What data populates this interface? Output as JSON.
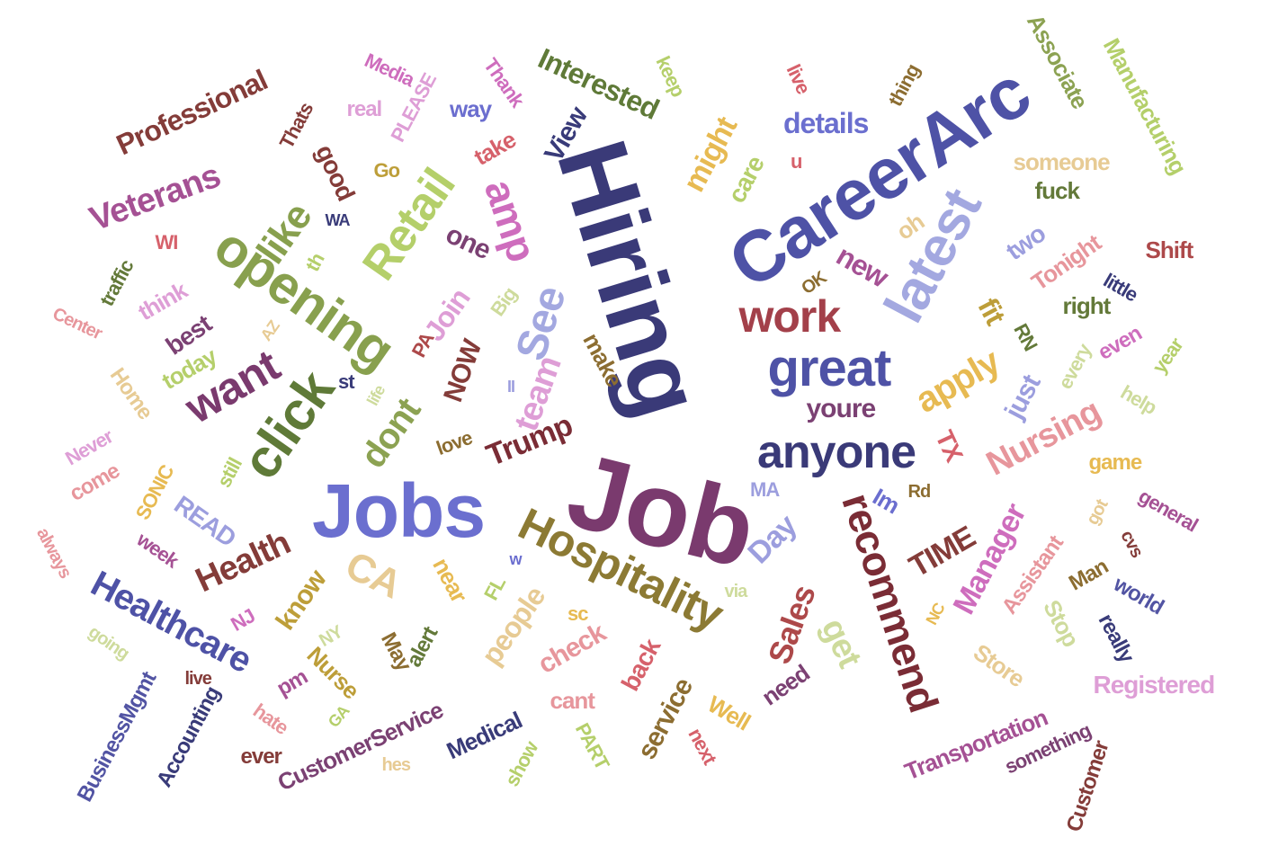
{
  "words": [
    {
      "text": "Hiring",
      "color": "#3a3a78"
    },
    {
      "text": "Job",
      "color": "#7a3a6e"
    },
    {
      "text": "CareerArc",
      "color": "#4e52a6"
    },
    {
      "text": "Jobs",
      "color": "#6b6fcf"
    },
    {
      "text": "latest",
      "color": "#a3a8e0"
    },
    {
      "text": "opening",
      "color": "#88a04e"
    },
    {
      "text": "click",
      "color": "#5f7a38"
    },
    {
      "text": "great",
      "color": "#4e52a6"
    },
    {
      "text": "anyone",
      "color": "#3a3a78"
    },
    {
      "text": "work",
      "color": "#a3404a"
    },
    {
      "text": "Retail",
      "color": "#b4cf6a"
    },
    {
      "text": "Hospitality",
      "color": "#8c7a34"
    },
    {
      "text": "recommend",
      "color": "#7a2c35"
    },
    {
      "text": "want",
      "color": "#7a3a6e"
    },
    {
      "text": "amp",
      "color": "#ce6dbd"
    },
    {
      "text": "See",
      "color": "#a3a8e0"
    },
    {
      "text": "like",
      "color": "#88a04e"
    },
    {
      "text": "apply",
      "color": "#e7ba52"
    },
    {
      "text": "Nursing",
      "color": "#e7969c"
    },
    {
      "text": "Healthcare",
      "color": "#4e52a6"
    },
    {
      "text": "Health",
      "color": "#843c39"
    },
    {
      "text": "Veterans",
      "color": "#a55194"
    },
    {
      "text": "Professional",
      "color": "#843c39"
    },
    {
      "text": "Interested",
      "color": "#5f7a38"
    },
    {
      "text": "details",
      "color": "#6b6fcf"
    },
    {
      "text": "Associate",
      "color": "#8ca252"
    },
    {
      "text": "Manufacturing",
      "color": "#b4cf6a"
    },
    {
      "text": "team",
      "color": "#de9ed6"
    },
    {
      "text": "Trump",
      "color": "#7a2c35"
    },
    {
      "text": "dont",
      "color": "#8ca252"
    },
    {
      "text": "CA",
      "color": "#e7cb94"
    },
    {
      "text": "Manager",
      "color": "#ce6dbd"
    },
    {
      "text": "Sales",
      "color": "#ad494a"
    },
    {
      "text": "TIME",
      "color": "#843c39"
    },
    {
      "text": "check",
      "color": "#e7969c"
    },
    {
      "text": "people",
      "color": "#e7cb94"
    },
    {
      "text": "get",
      "color": "#cedb9c"
    },
    {
      "text": "Day",
      "color": "#9c9ede"
    },
    {
      "text": "might",
      "color": "#e7ba52"
    },
    {
      "text": "new",
      "color": "#a55194"
    },
    {
      "text": "fit",
      "color": "#bd9e39"
    },
    {
      "text": "two",
      "color": "#9c9ede"
    },
    {
      "text": "youre",
      "color": "#7b4173"
    },
    {
      "text": "just",
      "color": "#9c9ede"
    },
    {
      "text": "TX",
      "color": "#d6616b"
    },
    {
      "text": "one",
      "color": "#7b4173"
    },
    {
      "text": "Join",
      "color": "#de9ed6"
    },
    {
      "text": "NOW",
      "color": "#843c39"
    },
    {
      "text": "good",
      "color": "#843c39"
    },
    {
      "text": "View",
      "color": "#393b79"
    },
    {
      "text": "Thank",
      "color": "#ce6dbd"
    },
    {
      "text": "PLEASE",
      "color": "#de9ed6"
    },
    {
      "text": "Media",
      "color": "#ce6dbd"
    },
    {
      "text": "real",
      "color": "#de9ed6"
    },
    {
      "text": "way",
      "color": "#6b6ecf"
    },
    {
      "text": "take",
      "color": "#d6616b"
    },
    {
      "text": "keep",
      "color": "#b5cf6b"
    },
    {
      "text": "live",
      "color": "#d6616b"
    },
    {
      "text": "thing",
      "color": "#8c6d31"
    },
    {
      "text": "care",
      "color": "#b5cf6b"
    },
    {
      "text": "u",
      "color": "#d6616b"
    },
    {
      "text": "someone",
      "color": "#e7cb94"
    },
    {
      "text": "fuck",
      "color": "#637939"
    },
    {
      "text": "oh",
      "color": "#e7cb94"
    },
    {
      "text": "Tonight",
      "color": "#e7969c"
    },
    {
      "text": "Shift",
      "color": "#ad494a"
    },
    {
      "text": "little",
      "color": "#393b79"
    },
    {
      "text": "right",
      "color": "#637939"
    },
    {
      "text": "OK",
      "color": "#8c6d31"
    },
    {
      "text": "Go",
      "color": "#bd9e39"
    },
    {
      "text": "Thats",
      "color": "#843c39"
    },
    {
      "text": "WA",
      "color": "#393b79"
    },
    {
      "text": "th",
      "color": "#b5cf6b"
    },
    {
      "text": "WI",
      "color": "#d6616b"
    },
    {
      "text": "traffic",
      "color": "#637939"
    },
    {
      "text": "think",
      "color": "#de9ed6"
    },
    {
      "text": "best",
      "color": "#7b4173"
    },
    {
      "text": "Center",
      "color": "#e7969c"
    },
    {
      "text": "today",
      "color": "#b5cf6b"
    },
    {
      "text": "AZ",
      "color": "#e7cb94"
    },
    {
      "text": "Big",
      "color": "#cedb9c"
    },
    {
      "text": "PA",
      "color": "#ad494a"
    },
    {
      "text": "make",
      "color": "#8c6d31"
    },
    {
      "text": "II",
      "color": "#9c9ede"
    },
    {
      "text": "st",
      "color": "#393b79"
    },
    {
      "text": "life",
      "color": "#cedb9c"
    },
    {
      "text": "Home",
      "color": "#e7cb94"
    },
    {
      "text": "Never",
      "color": "#de9ed6"
    },
    {
      "text": "come",
      "color": "#e7969c"
    },
    {
      "text": "SONIC",
      "color": "#e7ba52"
    },
    {
      "text": "READ",
      "color": "#9c9ede"
    },
    {
      "text": "still",
      "color": "#b5cf6b"
    },
    {
      "text": "love",
      "color": "#8c6d31"
    },
    {
      "text": "always",
      "color": "#e7969c"
    },
    {
      "text": "week",
      "color": "#a55194"
    },
    {
      "text": "NJ",
      "color": "#ce6dbd"
    },
    {
      "text": "know",
      "color": "#bd9e39"
    },
    {
      "text": "going",
      "color": "#cedb9c"
    },
    {
      "text": "BusinessMgmt",
      "color": "#5254a3"
    },
    {
      "text": "Accounting",
      "color": "#393b79"
    },
    {
      "text": "live",
      "color": "#843c39"
    },
    {
      "text": "pm",
      "color": "#a55194"
    },
    {
      "text": "hate",
      "color": "#e7969c"
    },
    {
      "text": "ever",
      "color": "#843c39"
    },
    {
      "text": "Nurse",
      "color": "#bd9e39"
    },
    {
      "text": "NY",
      "color": "#cedb9c"
    },
    {
      "text": "GA",
      "color": "#b5cf6b"
    },
    {
      "text": "May",
      "color": "#8c6d31"
    },
    {
      "text": "alert",
      "color": "#637939"
    },
    {
      "text": "CustomerService",
      "color": "#7b4173"
    },
    {
      "text": "hes",
      "color": "#e7cb94"
    },
    {
      "text": "Medical",
      "color": "#393b79"
    },
    {
      "text": "show",
      "color": "#b5cf6b"
    },
    {
      "text": "PART",
      "color": "#b5cf6b"
    },
    {
      "text": "near",
      "color": "#e7ba52"
    },
    {
      "text": "FL",
      "color": "#b5cf6b"
    },
    {
      "text": "w",
      "color": "#6b6ecf"
    },
    {
      "text": "sc",
      "color": "#e7ba52"
    },
    {
      "text": "cant",
      "color": "#e7969c"
    },
    {
      "text": "back",
      "color": "#d6616b"
    },
    {
      "text": "service",
      "color": "#8c6d31"
    },
    {
      "text": "via",
      "color": "#cedb9c"
    },
    {
      "text": "MA",
      "color": "#9c9ede"
    },
    {
      "text": "Well",
      "color": "#e7ba52"
    },
    {
      "text": "next",
      "color": "#d6616b"
    },
    {
      "text": "need",
      "color": "#7b4173"
    },
    {
      "text": "Im",
      "color": "#6b6ecf"
    },
    {
      "text": "Rd",
      "color": "#8c6d31"
    },
    {
      "text": "NC",
      "color": "#e7ba52"
    },
    {
      "text": "Assistant",
      "color": "#e7969c"
    },
    {
      "text": "Store",
      "color": "#e7cb94"
    },
    {
      "text": "Stop",
      "color": "#cedb9c"
    },
    {
      "text": "Man",
      "color": "#8c6d31"
    },
    {
      "text": "got",
      "color": "#e7cb94"
    },
    {
      "text": "cvs",
      "color": "#843c39"
    },
    {
      "text": "general",
      "color": "#a55194"
    },
    {
      "text": "world",
      "color": "#5254a3"
    },
    {
      "text": "really",
      "color": "#393b79"
    },
    {
      "text": "Registered",
      "color": "#de9ed6"
    },
    {
      "text": "Transportation",
      "color": "#a55194"
    },
    {
      "text": "something",
      "color": "#7b4173"
    },
    {
      "text": "Customer",
      "color": "#843c39"
    },
    {
      "text": "game",
      "color": "#e7ba52"
    },
    {
      "text": "every",
      "color": "#cedb9c"
    },
    {
      "text": "even",
      "color": "#ce6dbd"
    },
    {
      "text": "year",
      "color": "#b5cf6b"
    },
    {
      "text": "help",
      "color": "#cedb9c"
    },
    {
      "text": "RN",
      "color": "#637939"
    }
  ]
}
